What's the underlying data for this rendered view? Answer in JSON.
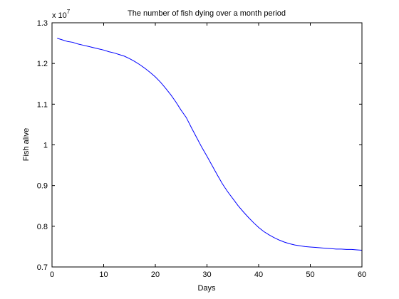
{
  "chart_data": {
    "type": "line",
    "title": "The number of fish dying over a month period",
    "xlabel": "Days",
    "ylabel": "Fish alive",
    "y_multiplier_label": "x 10",
    "y_multiplier_exponent": "7",
    "xlim": [
      0,
      60
    ],
    "ylim": [
      0.7,
      1.3
    ],
    "xticks": [
      "0",
      "10",
      "20",
      "30",
      "40",
      "50",
      "60"
    ],
    "yticks": [
      "0.7",
      "0.8",
      "0.9",
      "1",
      "1.1",
      "1.2",
      "1.3"
    ],
    "grid": false,
    "legend": "none",
    "series": [
      {
        "color": "#0000ff",
        "x": [
          1,
          2,
          3,
          4,
          5,
          6,
          7,
          8,
          9,
          10,
          11,
          12,
          13,
          14,
          15,
          16,
          17,
          18,
          19,
          20,
          21,
          22,
          23,
          24,
          25,
          26,
          27,
          28,
          29,
          30,
          31,
          32,
          33,
          34,
          35,
          36,
          37,
          38,
          39,
          40,
          41,
          42,
          43,
          44,
          45,
          46,
          47,
          48,
          49,
          50,
          51,
          52,
          53,
          54,
          55,
          56,
          57,
          58,
          59,
          60
        ],
        "y": [
          1.262,
          1.258,
          1.254,
          1.252,
          1.248,
          1.245,
          1.242,
          1.239,
          1.236,
          1.233,
          1.229,
          1.226,
          1.222,
          1.218,
          1.212,
          1.205,
          1.197,
          1.188,
          1.178,
          1.167,
          1.154,
          1.139,
          1.123,
          1.105,
          1.085,
          1.067,
          1.042,
          1.018,
          0.994,
          0.972,
          0.949,
          0.926,
          0.904,
          0.885,
          0.868,
          0.851,
          0.836,
          0.822,
          0.809,
          0.797,
          0.787,
          0.779,
          0.772,
          0.766,
          0.761,
          0.757,
          0.754,
          0.752,
          0.75,
          0.749,
          0.748,
          0.747,
          0.746,
          0.745,
          0.744,
          0.744,
          0.743,
          0.743,
          0.742,
          0.741
        ]
      }
    ]
  }
}
